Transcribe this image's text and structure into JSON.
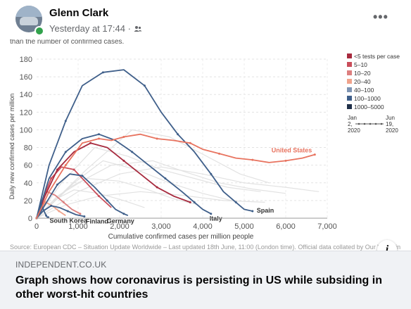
{
  "post": {
    "author": "Glenn Clark",
    "timestamp": "Yesterday at 17:44",
    "separator": "·",
    "audience_icon": "friends-icon",
    "more_icon": "more-horizontal-icon",
    "more_label": "•••"
  },
  "chart_header_text": "than the number of confirmed cases.",
  "chart_source_text": "Source: European CDC – Situation Update Worldwide – Last updated 18th June, 11:00 (London time). Official data collated by Our World in",
  "chart_data": {
    "type": "line",
    "xlabel": "Cumulative confirmed cases per million people",
    "ylabel": "Daily new confirmed cases per million",
    "xlim": [
      0,
      7000
    ],
    "ylim": [
      0,
      180
    ],
    "xticks": [
      0,
      1000,
      2000,
      3000,
      4000,
      5000,
      6000,
      7000
    ],
    "xtick_labels": [
      "0",
      "1,000",
      "2,000",
      "3,000",
      "4,000",
      "5,000",
      "6,000",
      "7,000"
    ],
    "yticks": [
      0,
      20,
      40,
      60,
      80,
      100,
      120,
      140,
      160,
      180
    ],
    "grid": true,
    "legend": {
      "placement": "right",
      "entries": [
        {
          "label": "<5 tests per case",
          "color": "#a72a3e"
        },
        {
          "label": "5–10",
          "color": "#c94d5a"
        },
        {
          "label": "10–20",
          "color": "#dd7f7f"
        },
        {
          "label": "20–40",
          "color": "#f0a38c"
        },
        {
          "label": "40–100",
          "color": "#7e94b3"
        },
        {
          "label": "100–1000",
          "color": "#3f5f8a"
        },
        {
          "label": "1000–5000",
          "color": "#1f2f48"
        }
      ],
      "time_start_label": [
        "Jan",
        "2,",
        "2020"
      ],
      "time_end_label": [
        "Jun",
        "19,",
        "2020"
      ]
    },
    "series": [
      {
        "name": "United States",
        "color": "#e8735f",
        "label": "United States",
        "x": [
          0,
          300,
          700,
          1100,
          1500,
          1800,
          2100,
          2500,
          2900,
          3300,
          3700,
          4000,
          4400,
          4800,
          5200,
          5600,
          6000,
          6400,
          6700
        ],
        "y": [
          0,
          30,
          60,
          85,
          90,
          88,
          92,
          95,
          90,
          88,
          85,
          78,
          73,
          68,
          66,
          63,
          65,
          68,
          72
        ]
      },
      {
        "name": "Spain",
        "color": "#3f5f8a",
        "label": "Spain",
        "x": [
          0,
          300,
          700,
          1100,
          1600,
          2100,
          2600,
          3000,
          3400,
          3800,
          4200,
          4500,
          4800,
          5000,
          5200
        ],
        "y": [
          0,
          60,
          110,
          150,
          165,
          168,
          150,
          120,
          95,
          75,
          50,
          30,
          18,
          10,
          8
        ]
      },
      {
        "name": "Italy",
        "color": "#3f5f8a",
        "label": "Italy",
        "x": [
          0,
          300,
          700,
          1100,
          1500,
          1900,
          2300,
          2700,
          3100,
          3500,
          3800,
          4000,
          4200
        ],
        "y": [
          0,
          45,
          75,
          90,
          95,
          88,
          75,
          60,
          45,
          30,
          18,
          10,
          5
        ]
      },
      {
        "name": "Germany",
        "color": "#3f5f8a",
        "label": "Germany",
        "x": [
          0,
          200,
          500,
          800,
          1100,
          1400,
          1700,
          1900,
          2100,
          2200
        ],
        "y": [
          0,
          15,
          38,
          50,
          48,
          35,
          20,
          10,
          5,
          3
        ]
      },
      {
        "name": "Finland",
        "color": "#3f5f8a",
        "label": "Finland",
        "x": [
          0,
          150,
          350,
          550,
          750,
          950,
          1150
        ],
        "y": [
          0,
          8,
          14,
          12,
          8,
          4,
          2
        ]
      },
      {
        "name": "South Korea",
        "color": "#3f5f8a",
        "label": "South Korea",
        "x": [
          0,
          50,
          120,
          180,
          230,
          260,
          280
        ],
        "y": [
          0,
          5,
          15,
          8,
          3,
          1,
          1
        ]
      },
      {
        "name": "",
        "color": "#a72a3e",
        "label": "",
        "x": [
          0,
          200,
          500,
          900,
          1300,
          1700,
          2100,
          2500,
          2900,
          3300,
          3700
        ],
        "y": [
          0,
          25,
          55,
          75,
          85,
          80,
          65,
          50,
          35,
          25,
          18
        ]
      },
      {
        "name": "",
        "color": "#c94d5a",
        "label": "",
        "x": [
          0,
          150,
          350,
          600,
          900,
          1200,
          1500,
          1800
        ],
        "y": [
          0,
          22,
          45,
          58,
          55,
          40,
          25,
          12
        ]
      },
      {
        "name": "",
        "color": "#dd7f7f",
        "label": "",
        "x": [
          0,
          100,
          250,
          450,
          650,
          850,
          1050
        ],
        "y": [
          0,
          18,
          30,
          26,
          18,
          10,
          5
        ]
      },
      {
        "name": "",
        "color": "#f0a38c",
        "label": "",
        "x": [
          0,
          100,
          220,
          380,
          540,
          700
        ],
        "y": [
          0,
          10,
          18,
          14,
          8,
          3
        ]
      }
    ]
  },
  "link": {
    "domain": "INDEPENDENT.CO.UK",
    "headline": "Graph shows how coronavirus is persisting in US while subsiding in other worst-hit countries",
    "info_label": "i"
  }
}
